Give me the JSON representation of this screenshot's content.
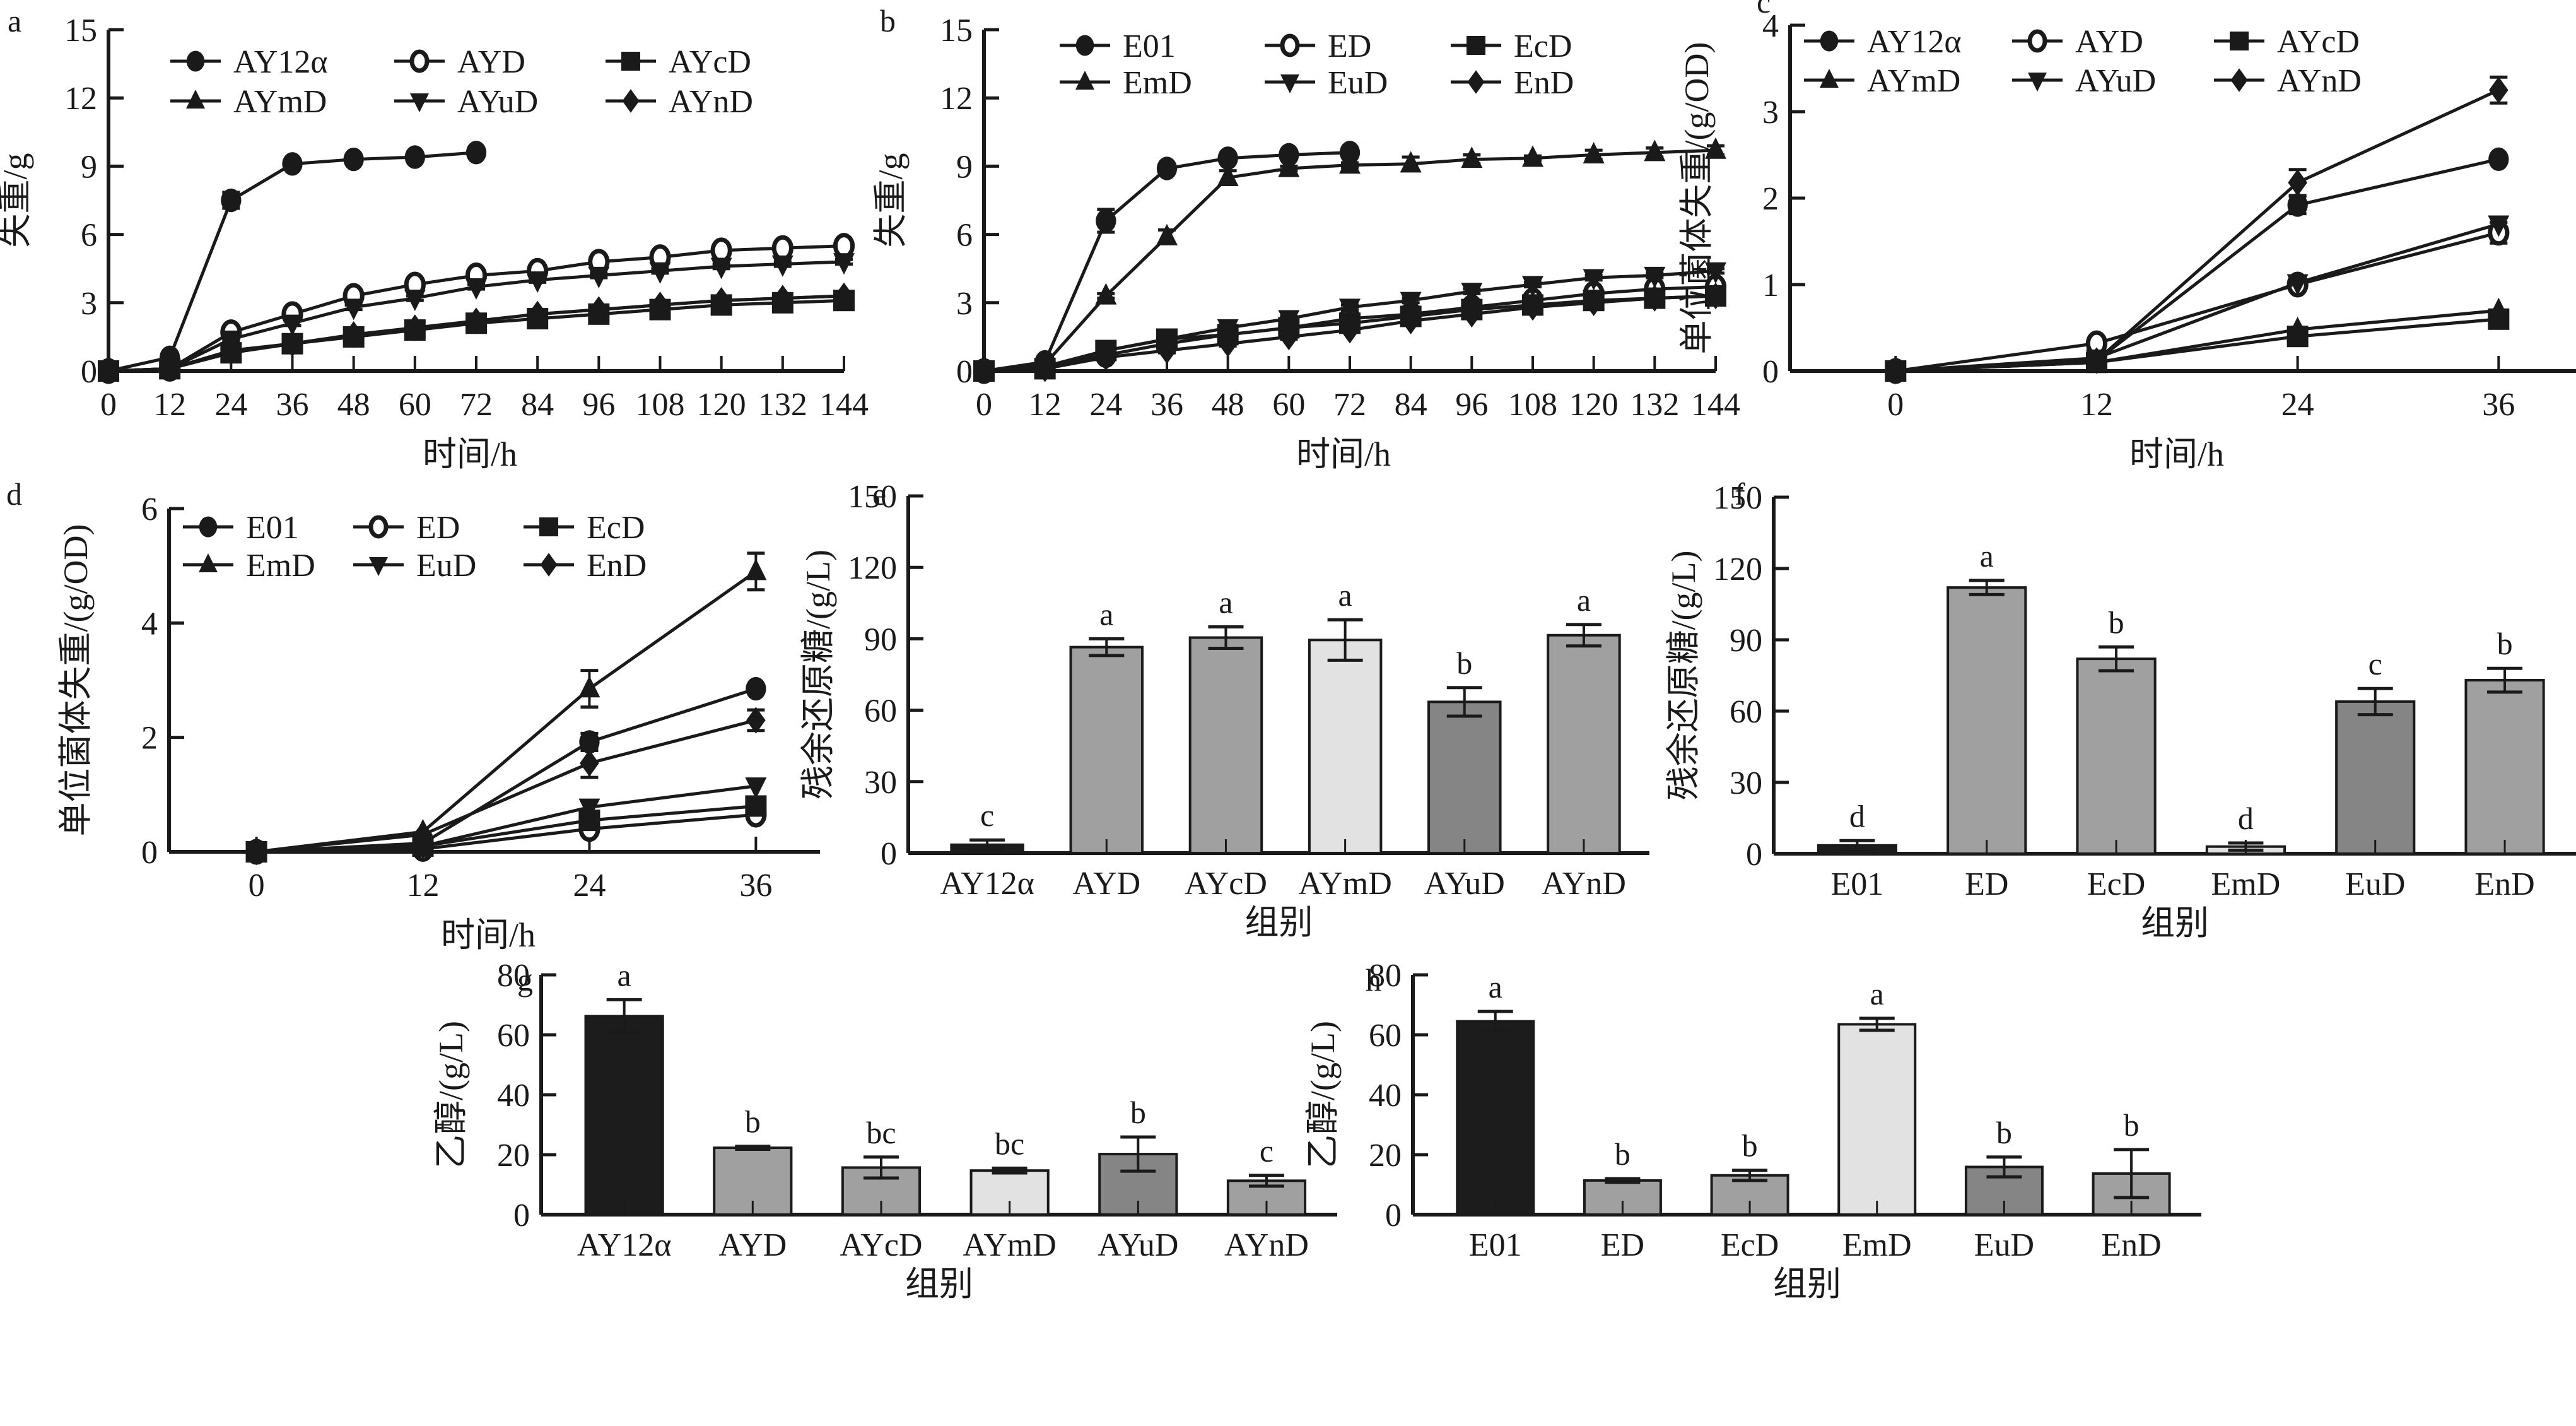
{
  "chart_data": [
    {
      "id": "a",
      "type": "line",
      "panel_label": "a",
      "xlabel": "时间/h",
      "ylabel": "失重/g",
      "x": [
        0,
        12,
        24,
        36,
        48,
        60,
        72,
        84,
        96,
        108,
        120,
        132,
        144
      ],
      "xticks": [
        "0",
        "12",
        "24",
        "36",
        "48",
        "60",
        "72",
        "84",
        "96",
        "108",
        "120",
        "132",
        "144"
      ],
      "ylim": [
        0,
        15
      ],
      "yticks": [
        0,
        3,
        6,
        9,
        12,
        15
      ],
      "grid": false,
      "legend": "top",
      "series": [
        {
          "name": "AY12α",
          "marker": "circle-filled",
          "values": [
            0,
            0.6,
            7.5,
            9.1,
            9.3,
            9.4,
            9.6
          ],
          "errors": [
            0,
            0.1,
            0.35,
            0.1,
            0.1,
            0.1,
            0.1
          ]
        },
        {
          "name": "AYD",
          "marker": "circle-open",
          "values": [
            0,
            0.1,
            1.7,
            2.5,
            3.3,
            3.8,
            4.2,
            4.4,
            4.8,
            5.0,
            5.3,
            5.4,
            5.5
          ],
          "errors": [
            0,
            0.05,
            0.1,
            0.1,
            0.1,
            0.1,
            0.1,
            0.1,
            0.1,
            0.1,
            0.1,
            0.1,
            0.1
          ]
        },
        {
          "name": "AYcD",
          "marker": "square-filled",
          "values": [
            0,
            0.1,
            0.8,
            1.2,
            1.5,
            1.8,
            2.1,
            2.3,
            2.5,
            2.7,
            2.9,
            3.0,
            3.1
          ],
          "errors": [
            0,
            0.05,
            0.1,
            0.1,
            0.1,
            0.1,
            0.1,
            0.1,
            0.1,
            0.1,
            0.1,
            0.1,
            0.1
          ]
        },
        {
          "name": "AYmD",
          "marker": "triangle-up-filled",
          "values": [
            0,
            0.1,
            0.9,
            1.2,
            1.6,
            1.9,
            2.2,
            2.5,
            2.7,
            2.9,
            3.1,
            3.2,
            3.3
          ],
          "errors": [
            0,
            0.05,
            0.1,
            0.1,
            0.1,
            0.1,
            0.1,
            0.1,
            0.1,
            0.1,
            0.1,
            0.1,
            0.1
          ]
        },
        {
          "name": "AYuD",
          "marker": "triangle-down-filled",
          "values": [
            0,
            0.1,
            1.4,
            2.1,
            2.8,
            3.2,
            3.7,
            4.0,
            4.2,
            4.4,
            4.6,
            4.7,
            4.8
          ],
          "errors": [
            0,
            0.05,
            0.1,
            0.1,
            0.1,
            0.1,
            0.1,
            0.1,
            0.1,
            0.1,
            0.1,
            0.1,
            0.1
          ]
        },
        {
          "name": "AYnD",
          "marker": "diamond-filled",
          "values": [
            0,
            0.1,
            0.9,
            1.2,
            1.6,
            1.9,
            2.2,
            2.5,
            2.7,
            2.9,
            3.1,
            3.2,
            3.3
          ],
          "errors": [
            0,
            0.05,
            0.1,
            0.1,
            0.1,
            0.1,
            0.1,
            0.1,
            0.1,
            0.1,
            0.1,
            0.1,
            0.1
          ]
        }
      ]
    },
    {
      "id": "b",
      "type": "line",
      "panel_label": "b",
      "xlabel": "时间/h",
      "ylabel": "失重/g",
      "x": [
        0,
        12,
        24,
        36,
        48,
        60,
        72,
        84,
        96,
        108,
        120,
        132,
        144
      ],
      "xticks": [
        "0",
        "12",
        "24",
        "36",
        "48",
        "60",
        "72",
        "84",
        "96",
        "108",
        "120",
        "132",
        "144"
      ],
      "ylim": [
        0,
        15
      ],
      "yticks": [
        0,
        3,
        6,
        9,
        12,
        15
      ],
      "grid": false,
      "legend": "top",
      "series": [
        {
          "name": "E01",
          "marker": "circle-filled",
          "values": [
            0,
            0.4,
            6.6,
            8.9,
            9.35,
            9.5,
            9.6
          ],
          "errors": [
            0,
            0.1,
            0.5,
            0.1,
            0.1,
            0.1,
            0.1
          ]
        },
        {
          "name": "ED",
          "marker": "circle-open",
          "values": [
            0,
            0.2,
            0.7,
            1.2,
            1.6,
            1.9,
            2.3,
            2.5,
            2.8,
            3.1,
            3.4,
            3.6,
            3.7
          ],
          "errors": [
            0,
            0.05,
            0.1,
            0.1,
            0.1,
            0.1,
            0.1,
            0.1,
            0.1,
            0.1,
            0.1,
            0.1,
            0.1
          ]
        },
        {
          "name": "EcD",
          "marker": "square-filled",
          "values": [
            0,
            0.1,
            0.9,
            1.4,
            1.6,
            1.9,
            2.1,
            2.4,
            2.7,
            2.9,
            3.1,
            3.2,
            3.3
          ],
          "errors": [
            0,
            0.05,
            0.1,
            0.1,
            0.1,
            0.1,
            0.1,
            0.1,
            0.1,
            0.1,
            0.1,
            0.1,
            0.1
          ]
        },
        {
          "name": "EmD",
          "marker": "triangle-up-filled",
          "values": [
            0,
            0.3,
            3.3,
            5.9,
            8.5,
            8.9,
            9.05,
            9.1,
            9.3,
            9.35,
            9.5,
            9.6,
            9.7
          ],
          "errors": [
            0,
            0.05,
            0.1,
            0.3,
            0.3,
            0.1,
            0.1,
            0.3,
            0.2,
            0.1,
            0.2,
            0.2,
            0.2
          ]
        },
        {
          "name": "EuD",
          "marker": "triangle-down-filled",
          "values": [
            0,
            0.2,
            0.9,
            1.4,
            1.9,
            2.3,
            2.8,
            3.1,
            3.5,
            3.8,
            4.1,
            4.2,
            4.4
          ],
          "errors": [
            0,
            0.05,
            0.1,
            0.1,
            0.1,
            0.1,
            0.1,
            0.1,
            0.1,
            0.1,
            0.1,
            0.1,
            0.1
          ]
        },
        {
          "name": "EnD",
          "marker": "diamond-filled",
          "values": [
            0,
            0.1,
            0.6,
            0.9,
            1.2,
            1.5,
            1.8,
            2.2,
            2.5,
            2.8,
            3.0,
            3.2,
            3.3
          ],
          "errors": [
            0,
            0.05,
            0.1,
            0.1,
            0.1,
            0.1,
            0.1,
            0.1,
            0.1,
            0.1,
            0.1,
            0.1,
            0.1
          ]
        }
      ]
    },
    {
      "id": "c",
      "type": "line",
      "panel_label": "c",
      "xlabel": "时间/h",
      "ylabel": "单位菌体失重/(g/OD)",
      "x": [
        0,
        12,
        24,
        36
      ],
      "xticks": [
        "0",
        "12",
        "24",
        "36"
      ],
      "ylim": [
        0,
        4
      ],
      "yticks": [
        0,
        1,
        2,
        3,
        4
      ],
      "grid": false,
      "legend": "top",
      "series": [
        {
          "name": "AY12α",
          "marker": "circle-filled",
          "values": [
            0,
            0.12,
            1.92,
            2.45
          ],
          "errors": [
            0,
            0.05,
            0.1,
            0.05
          ]
        },
        {
          "name": "AYD",
          "marker": "circle-open",
          "values": [
            0,
            0.32,
            1.0,
            1.6
          ],
          "errors": [
            0,
            0.05,
            0.05,
            0.12
          ]
        },
        {
          "name": "AYcD",
          "marker": "square-filled",
          "values": [
            0,
            0.1,
            0.4,
            0.6
          ],
          "errors": [
            0,
            0.1,
            0.05,
            0.05
          ]
        },
        {
          "name": "AYmD",
          "marker": "triangle-up-filled",
          "values": [
            0,
            0.1,
            0.48,
            0.7
          ],
          "errors": [
            0,
            0.05,
            0.05,
            0.05
          ]
        },
        {
          "name": "AYuD",
          "marker": "triangle-down-filled",
          "values": [
            0,
            0.15,
            1.02,
            1.7
          ],
          "errors": [
            0,
            0.05,
            0.05,
            0.05
          ]
        },
        {
          "name": "AYnD",
          "marker": "diamond-filled",
          "values": [
            0,
            0.12,
            2.18,
            3.25
          ],
          "errors": [
            0,
            0.05,
            0.15,
            0.15
          ]
        }
      ]
    },
    {
      "id": "d",
      "type": "line",
      "panel_label": "d",
      "xlabel": "时间/h",
      "ylabel": "单位菌体失重/(g/OD)",
      "x": [
        0,
        12,
        24,
        36
      ],
      "xticks": [
        "0",
        "12",
        "24",
        "36"
      ],
      "ylim": [
        0,
        6
      ],
      "yticks": [
        0,
        2,
        4,
        6
      ],
      "grid": false,
      "legend": "top",
      "series": [
        {
          "name": "E01",
          "marker": "circle-filled",
          "values": [
            0,
            0.15,
            1.92,
            2.85
          ],
          "errors": [
            0,
            0.05,
            0.15,
            0.05
          ]
        },
        {
          "name": "ED",
          "marker": "circle-open",
          "values": [
            0,
            0.05,
            0.4,
            0.65
          ],
          "errors": [
            0,
            0.05,
            0.05,
            0.05
          ]
        },
        {
          "name": "EcD",
          "marker": "square-filled",
          "values": [
            0,
            0.1,
            0.55,
            0.8
          ],
          "errors": [
            0,
            0.05,
            0.05,
            0.05
          ]
        },
        {
          "name": "EmD",
          "marker": "triangle-up-filled",
          "values": [
            0,
            0.35,
            2.85,
            4.9
          ],
          "errors": [
            0,
            0.05,
            0.32,
            0.32
          ]
        },
        {
          "name": "EuD",
          "marker": "triangle-down-filled",
          "values": [
            0,
            0.1,
            0.78,
            1.15
          ],
          "errors": [
            0,
            0.05,
            0.05,
            0.05
          ]
        },
        {
          "name": "EnD",
          "marker": "diamond-filled",
          "values": [
            0,
            0.3,
            1.55,
            2.3
          ],
          "errors": [
            0,
            0.05,
            0.25,
            0.18
          ]
        }
      ]
    },
    {
      "id": "e",
      "type": "bar",
      "panel_label": "e",
      "xlabel": "组别",
      "ylabel": "残余还原糖/(g/L)",
      "categories": [
        "AY12α",
        "AYD",
        "AYcD",
        "AYmD",
        "AYuD",
        "AYnD"
      ],
      "values": [
        3.5,
        86.5,
        90.5,
        89.5,
        63.5,
        91.5
      ],
      "errors": [
        2,
        3.5,
        4.5,
        8.5,
        6,
        4.5
      ],
      "sig_letters": [
        "c",
        "a",
        "a",
        "a",
        "b",
        "a"
      ],
      "colors": [
        "#1c1c1c",
        "#a0a0a0",
        "#a0a0a0",
        "#e2e2e2",
        "#858585",
        "#a0a0a0"
      ],
      "ylim": [
        0,
        150
      ],
      "yticks": [
        0,
        30,
        60,
        90,
        120,
        150
      ],
      "grid": false
    },
    {
      "id": "f",
      "type": "bar",
      "panel_label": "f",
      "xlabel": "组别",
      "ylabel": "残余还原糖/(g/L)",
      "categories": [
        "E01",
        "ED",
        "EcD",
        "EmD",
        "EuD",
        "EnD"
      ],
      "values": [
        3.5,
        112,
        82,
        3,
        64,
        73
      ],
      "errors": [
        2,
        3,
        5,
        1.5,
        5.5,
        5
      ],
      "sig_letters": [
        "d",
        "a",
        "b",
        "d",
        "c",
        "b"
      ],
      "colors": [
        "#1c1c1c",
        "#a0a0a0",
        "#a0a0a0",
        "#e2e2e2",
        "#858585",
        "#a0a0a0"
      ],
      "ylim": [
        0,
        150
      ],
      "yticks": [
        0,
        30,
        60,
        90,
        120,
        150
      ],
      "grid": false
    },
    {
      "id": "g",
      "type": "bar",
      "panel_label": "g",
      "xlabel": "组别",
      "ylabel": "乙醇/(g/L)",
      "categories": [
        "AY12α",
        "AYD",
        "AYcD",
        "AYmD",
        "AYuD",
        "AYnD"
      ],
      "values": [
        66.2,
        22.3,
        15.7,
        14.7,
        20.2,
        11.3
      ],
      "errors": [
        5.5,
        0.5,
        3.5,
        0.8,
        5.7,
        1.8
      ],
      "sig_letters": [
        "a",
        "b",
        "bc",
        "bc",
        "b",
        "c"
      ],
      "colors": [
        "#1c1c1c",
        "#a0a0a0",
        "#a0a0a0",
        "#e2e2e2",
        "#858585",
        "#a0a0a0"
      ],
      "ylim": [
        0,
        80
      ],
      "yticks": [
        0,
        20,
        40,
        60,
        80
      ],
      "grid": false
    },
    {
      "id": "h",
      "type": "bar",
      "panel_label": "h",
      "xlabel": "组别",
      "ylabel": "乙醇/(g/L)",
      "categories": [
        "E01",
        "ED",
        "EcD",
        "EmD",
        "EuD",
        "EnD"
      ],
      "values": [
        64.5,
        11.4,
        13.1,
        63.5,
        15.9,
        13.7
      ],
      "errors": [
        3.3,
        0.6,
        1.7,
        2.0,
        3.3,
        8.0
      ],
      "sig_letters": [
        "a",
        "b",
        "b",
        "a",
        "b",
        "b"
      ],
      "colors": [
        "#1c1c1c",
        "#a0a0a0",
        "#a0a0a0",
        "#e2e2e2",
        "#858585",
        "#a0a0a0"
      ],
      "ylim": [
        0,
        80
      ],
      "yticks": [
        0,
        20,
        40,
        60,
        80
      ],
      "grid": false
    }
  ]
}
